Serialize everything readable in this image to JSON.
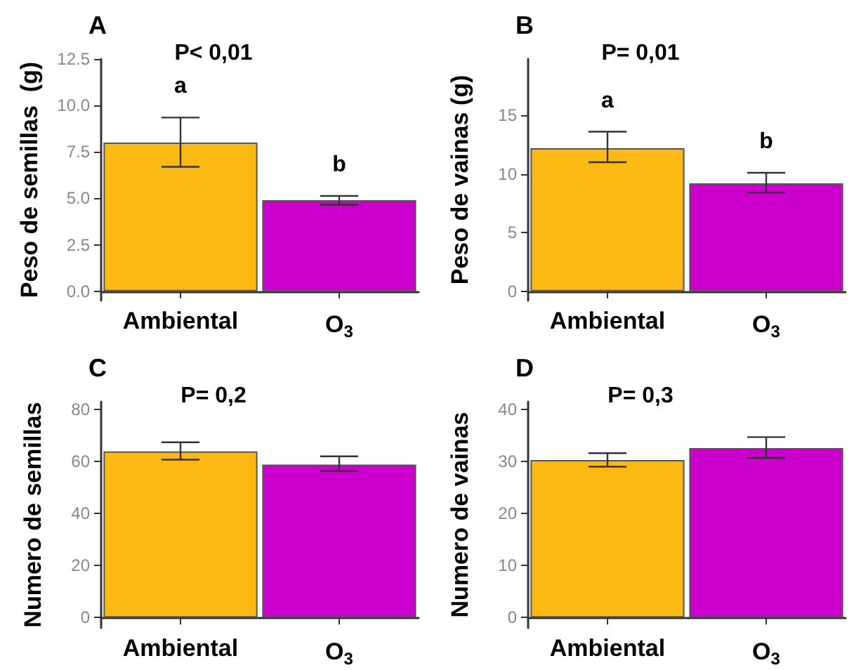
{
  "chart_data": [
    {
      "type": "bar",
      "title": "A",
      "ylabel": "Peso de semillas  (g)",
      "categories": [
        "Ambiental",
        "O$_{3}$"
      ],
      "values": [
        8.0,
        4.9
      ],
      "colors": [
        "#fdb913",
        "#cc00cc"
      ],
      "errors": [
        [
          6.7,
          9.35
        ],
        [
          4.65,
          5.13
        ]
      ],
      "ylim": [
        -0.5,
        12.5
      ],
      "yticks": [
        {
          "value": 0,
          "label": "0.0"
        },
        {
          "value": 2.5,
          "label": "2.5"
        },
        {
          "value": 5,
          "label": "5.0"
        },
        {
          "value": 7.5,
          "label": "7.5"
        },
        {
          "value": 10,
          "label": "10.0"
        },
        {
          "value": 12.5,
          "label": "12.5"
        }
      ],
      "grid": false,
      "annotations": [
        "P< 0,01",
        "a",
        "b"
      ]
    },
    {
      "type": "bar",
      "title": "B",
      "ylabel": "Peso de vainas (g)",
      "categories": [
        "Ambiental",
        "O$_{3}$"
      ],
      "values": [
        12.2,
        9.2
      ],
      "colors": [
        "#fdb913",
        "#cc00cc"
      ],
      "errors": [
        [
          11.0,
          13.6
        ],
        [
          8.4,
          10.1
        ]
      ],
      "ylim": [
        -0.8,
        19.8
      ],
      "yticks": [
        0,
        5,
        10,
        15
      ],
      "grid": false,
      "annotations": [
        "P= 0,01",
        "a",
        "b"
      ]
    },
    {
      "type": "bar",
      "title": "C",
      "ylabel": "Numero de semillas",
      "categories": [
        "Ambiental",
        "O$_{3}$"
      ],
      "values": [
        63.9,
        58.8
      ],
      "colors": [
        "#fdb913",
        "#cc00cc"
      ],
      "errors": [
        [
          60.7,
          67.4
        ],
        [
          56.3,
          62.0
        ]
      ],
      "ylim": [
        -4,
        83
      ],
      "yticks": [
        0,
        20,
        40,
        60,
        80
      ],
      "grid": false,
      "annotations": [
        "P= 0,2"
      ]
    },
    {
      "type": "bar",
      "title": "D",
      "ylabel": "Numero de vainas",
      "categories": [
        "Ambiental",
        "O$_{3}$"
      ],
      "values": [
        30.3,
        32.6
      ],
      "colors": [
        "#fdb913",
        "#cc00cc"
      ],
      "errors": [
        [
          29.0,
          31.6
        ],
        [
          30.7,
          34.7
        ]
      ],
      "ylim": [
        -2,
        41.5
      ],
      "yticks": [
        0,
        10,
        20,
        30,
        40
      ],
      "grid": false,
      "annotations": [
        "P= 0,3"
      ]
    }
  ]
}
